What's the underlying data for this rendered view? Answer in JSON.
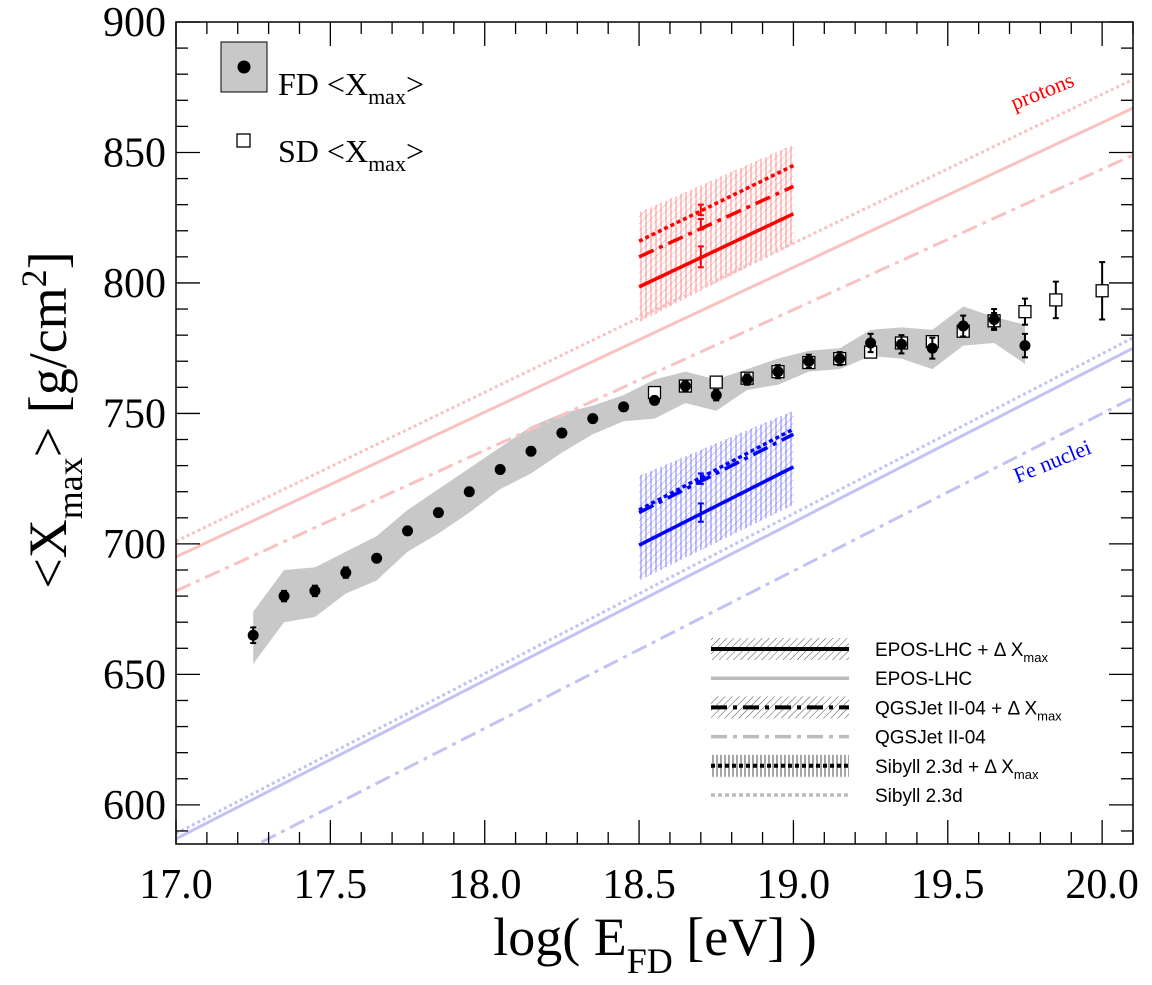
{
  "chart_data": {
    "type": "scatter",
    "title": "",
    "xlabel": {
      "main": "log( E",
      "sub": "FD",
      "tail": " [eV] )"
    },
    "ylabel": {
      "pre": "<X",
      "sub": "max",
      "mid": "> [g/cm",
      "sup": "2",
      "post": "]"
    },
    "xlim": [
      17.0,
      20.1
    ],
    "ylim": [
      585,
      900
    ],
    "x_ticks": [
      17.0,
      17.5,
      18.0,
      18.5,
      19.0,
      19.5,
      20.0
    ],
    "x_tick_labels": [
      "17.0",
      "17.5",
      "18.0",
      "18.5",
      "19.0",
      "19.5",
      "20.0"
    ],
    "y_ticks": [
      600,
      650,
      700,
      750,
      800,
      850,
      900
    ],
    "y_tick_labels": [
      "600",
      "650",
      "700",
      "750",
      "800",
      "850",
      "900"
    ],
    "grid": false,
    "legend_top_left": [
      {
        "label": "FD <X",
        "sub": "max",
        "post": ">",
        "marker": "filled-circle-band"
      },
      {
        "label": "SD <X",
        "sub": "max",
        "post": ">",
        "marker": "open-square"
      }
    ],
    "legend_bottom_right": [
      {
        "label": "EPOS-LHC + Δ X",
        "sub": "max",
        "style": "solid",
        "hatched": true,
        "color": "#000000"
      },
      {
        "label": "EPOS-LHC",
        "sub": "",
        "style": "solid",
        "hatched": false,
        "color": "#bbbbbb"
      },
      {
        "label": "QGSJet II-04 + Δ X",
        "sub": "max",
        "style": "dashdot",
        "hatched": true,
        "color": "#000000"
      },
      {
        "label": "QGSJet II-04",
        "sub": "",
        "style": "dashdot",
        "hatched": false,
        "color": "#bbbbbb"
      },
      {
        "label": "Sibyll 2.3d + Δ X",
        "sub": "max",
        "style": "dotted",
        "hatched": true,
        "color": "#000000"
      },
      {
        "label": "Sibyll 2.3d",
        "sub": "",
        "style": "dotted",
        "hatched": false,
        "color": "#bbbbbb"
      }
    ],
    "annotations": [
      {
        "text": "protons",
        "color": "#ff0000",
        "x": 19.95,
        "y": 867
      },
      {
        "text": "Fe nuclei",
        "color": "#0000ff",
        "x": 19.85,
        "y": 720
      }
    ],
    "fd_band": {
      "x": [
        17.25,
        17.35,
        17.45,
        17.55,
        17.65,
        17.75,
        17.85,
        17.95,
        18.05,
        18.15,
        18.25,
        18.35,
        18.45,
        18.55,
        18.65,
        18.75,
        18.85,
        18.95,
        19.05,
        19.15,
        19.25,
        19.35,
        19.45,
        19.55,
        19.65,
        19.75
      ],
      "upper": [
        674,
        690,
        691,
        697,
        703,
        713,
        721,
        729,
        737,
        745,
        750,
        753,
        757,
        763,
        766,
        763,
        767,
        771,
        774,
        775,
        782,
        783,
        782,
        791,
        787,
        784
      ],
      "lower": [
        654,
        670,
        672,
        681,
        686,
        697,
        704,
        712,
        721,
        727,
        735,
        742,
        747,
        748,
        754,
        751,
        759,
        761,
        766,
        767,
        772,
        771,
        767,
        776,
        777,
        769
      ]
    },
    "series": [
      {
        "name": "FD <Xmax>",
        "marker": "filled-circle",
        "x": [
          17.25,
          17.35,
          17.45,
          17.55,
          17.65,
          17.75,
          17.85,
          17.95,
          18.05,
          18.15,
          18.25,
          18.35,
          18.45,
          18.55,
          18.65,
          18.75,
          18.85,
          18.95,
          19.05,
          19.15,
          19.25,
          19.35,
          19.45,
          19.55,
          19.65,
          19.75
        ],
        "y": [
          665,
          680,
          682,
          689,
          694.5,
          705,
          712,
          720,
          728.5,
          735.5,
          742.5,
          748,
          752.5,
          755,
          760.5,
          757,
          763,
          766,
          770,
          771,
          777,
          776.5,
          775,
          783.5,
          786,
          776
        ],
        "err": [
          3,
          2,
          2,
          2,
          1.5,
          1.5,
          1.5,
          1.5,
          1.5,
          1.5,
          1.5,
          1.5,
          1.5,
          1.5,
          2,
          2,
          2,
          2.5,
          2.5,
          2.5,
          3.5,
          3.5,
          4,
          4,
          4,
          4.5
        ]
      },
      {
        "name": "SD <Xmax>",
        "marker": "open-square",
        "x": [
          18.55,
          18.65,
          18.75,
          18.85,
          18.95,
          19.05,
          19.15,
          19.25,
          19.35,
          19.45,
          19.55,
          19.65,
          19.75,
          19.85,
          20.0
        ],
        "y": [
          758,
          760.5,
          762,
          763.5,
          766,
          769.5,
          771,
          773.5,
          777,
          777.5,
          781.5,
          785.5,
          789,
          793.5,
          797
        ],
        "err": [
          1,
          1,
          1,
          1,
          1,
          1,
          1,
          1,
          1.5,
          1.5,
          2,
          3,
          5,
          7,
          11
        ]
      }
    ],
    "model_lines": {
      "x_range": [
        17.0,
        20.1
      ],
      "proton": [
        {
          "name": "EPOS-LHC",
          "style": "solid",
          "y": [
            695,
            867
          ]
        },
        {
          "name": "QGSJet II-04",
          "style": "dashdot",
          "y": [
            682,
            849
          ]
        },
        {
          "name": "Sibyll 2.3d",
          "style": "dotted",
          "y": [
            701,
            878
          ]
        }
      ],
      "iron": [
        {
          "name": "EPOS-LHC",
          "style": "solid",
          "y": [
            587,
            775
          ]
        },
        {
          "name": "QGSJet II-04",
          "style": "dashdot",
          "y": [
            569,
            756
          ]
        },
        {
          "name": "Sibyll 2.3d",
          "style": "dotted",
          "y": [
            589,
            779
          ]
        }
      ]
    },
    "shifted_models": {
      "x_range": [
        18.5,
        19.0
      ],
      "proton": [
        {
          "name": "EPOS-LHC + Δ Xmax",
          "style": "solid",
          "y": [
            798.5,
            826.5
          ]
        },
        {
          "name": "QGSJet II-04 + Δ Xmax",
          "style": "dashdot",
          "y": [
            810,
            837
          ]
        },
        {
          "name": "Sibyll 2.3d + Δ Xmax",
          "style": "dotted",
          "y": [
            816,
            845
          ]
        }
      ],
      "iron": [
        {
          "name": "EPOS-LHC + Δ Xmax",
          "style": "solid",
          "y": [
            699.5,
            729.5
          ]
        },
        {
          "name": "QGSJet II-04 + Δ Xmax",
          "style": "dashdot",
          "y": [
            712,
            742
          ]
        },
        {
          "name": "Sibyll 2.3d + Δ Xmax",
          "style": "dotted",
          "y": [
            713,
            744
          ]
        }
      ],
      "proton_band": {
        "x": [
          18.5,
          19.0
        ],
        "lower": [
          785,
          815
        ],
        "upper": [
          827,
          853
        ]
      },
      "iron_band": {
        "x": [
          18.5,
          19.0
        ],
        "lower": [
          686,
          715
        ],
        "upper": [
          726,
          751
        ]
      },
      "proton_errorbars": [
        {
          "x": 18.7,
          "y": 810,
          "err": 4
        },
        {
          "x": 18.7,
          "y": 822.5,
          "err": 2
        },
        {
          "x": 18.7,
          "y": 828,
          "err": 2
        }
      ],
      "iron_errorbars": [
        {
          "x": 18.7,
          "y": 712,
          "err": 3.5
        },
        {
          "x": 18.7,
          "y": 725,
          "err": 2
        }
      ]
    },
    "colors": {
      "proton_light": "#f9c2c2",
      "iron_light": "#c2c2f5",
      "proton": "#ff0000",
      "iron": "#0000ff",
      "band": "#c8c8c8",
      "axis": "#000000"
    }
  }
}
